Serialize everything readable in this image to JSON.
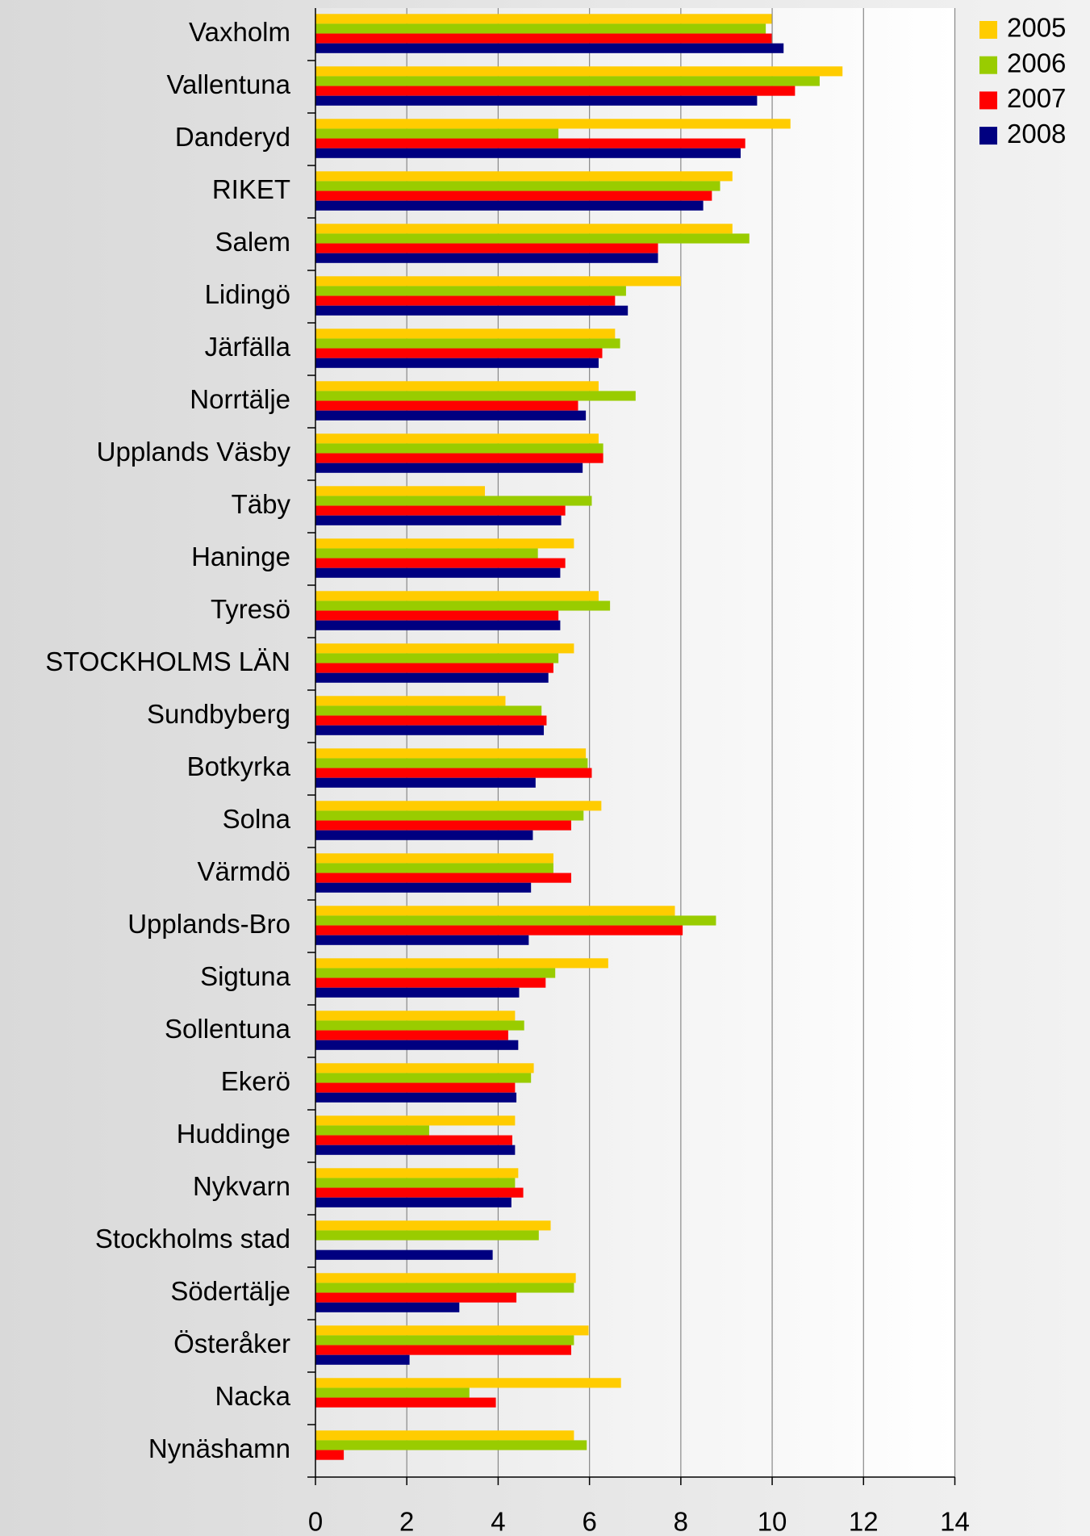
{
  "chart_data": {
    "type": "hbar",
    "categories": [
      "Vaxholm",
      "Vallentuna",
      "Danderyd",
      "RIKET",
      "Salem",
      "Lidingö",
      "Järfälla",
      "Norrtälje",
      "Upplands Väsby",
      "Täby",
      "Haninge",
      "Tyresö",
      "STOCKHOLMS LÄN",
      "Sundbyberg",
      "Botkyrka",
      "Solna",
      "Värmdö",
      "Upplands-Bro",
      "Sigtuna",
      "Sollentuna",
      "Ekerö",
      "Huddinge",
      "Nykvarn",
      "Stockholms stad",
      "Södertälje",
      "Österåker",
      "Nacka",
      "Nynäshamn"
    ],
    "series": [
      {
        "name": "2005",
        "color": "#ffcc00",
        "values": [
          9.99,
          11.54,
          10.4,
          9.13,
          9.13,
          8.0,
          6.56,
          6.2,
          6.2,
          3.71,
          5.66,
          6.2,
          5.66,
          4.16,
          5.92,
          6.26,
          5.21,
          7.87,
          6.41,
          4.37,
          4.78,
          4.37,
          4.44,
          5.15,
          5.7,
          5.98,
          6.69,
          5.66
        ]
      },
      {
        "name": "2006",
        "color": "#99cc00",
        "values": [
          9.86,
          11.04,
          5.32,
          8.86,
          9.5,
          6.8,
          6.67,
          7.01,
          6.3,
          6.05,
          4.87,
          6.45,
          5.32,
          4.95,
          5.96,
          5.87,
          5.21,
          8.77,
          5.25,
          4.57,
          4.72,
          2.49,
          4.37,
          4.89,
          5.66,
          5.66,
          3.37,
          5.94
        ]
      },
      {
        "name": "2007",
        "color": "#ff0000",
        "values": [
          9.99,
          10.5,
          9.41,
          8.68,
          7.5,
          6.56,
          6.28,
          5.75,
          6.3,
          5.47,
          5.47,
          5.32,
          5.21,
          5.06,
          6.05,
          5.6,
          5.6,
          8.04,
          5.04,
          4.22,
          4.37,
          4.31,
          4.55,
          null,
          4.4,
          5.6,
          3.95,
          0.62
        ]
      },
      {
        "name": "2008",
        "color": "#000080",
        "values": [
          10.25,
          9.67,
          9.31,
          8.49,
          7.5,
          6.84,
          6.2,
          5.92,
          5.85,
          5.38,
          5.36,
          5.36,
          5.1,
          5.0,
          4.82,
          4.76,
          4.72,
          4.67,
          4.46,
          4.44,
          4.4,
          4.37,
          4.29,
          3.88,
          3.15,
          2.06,
          null,
          null
        ]
      }
    ],
    "xlim": [
      0,
      14
    ],
    "xticks": [
      0,
      2,
      4,
      6,
      8,
      10,
      12,
      14
    ],
    "grid": true,
    "legend": "top-right"
  }
}
